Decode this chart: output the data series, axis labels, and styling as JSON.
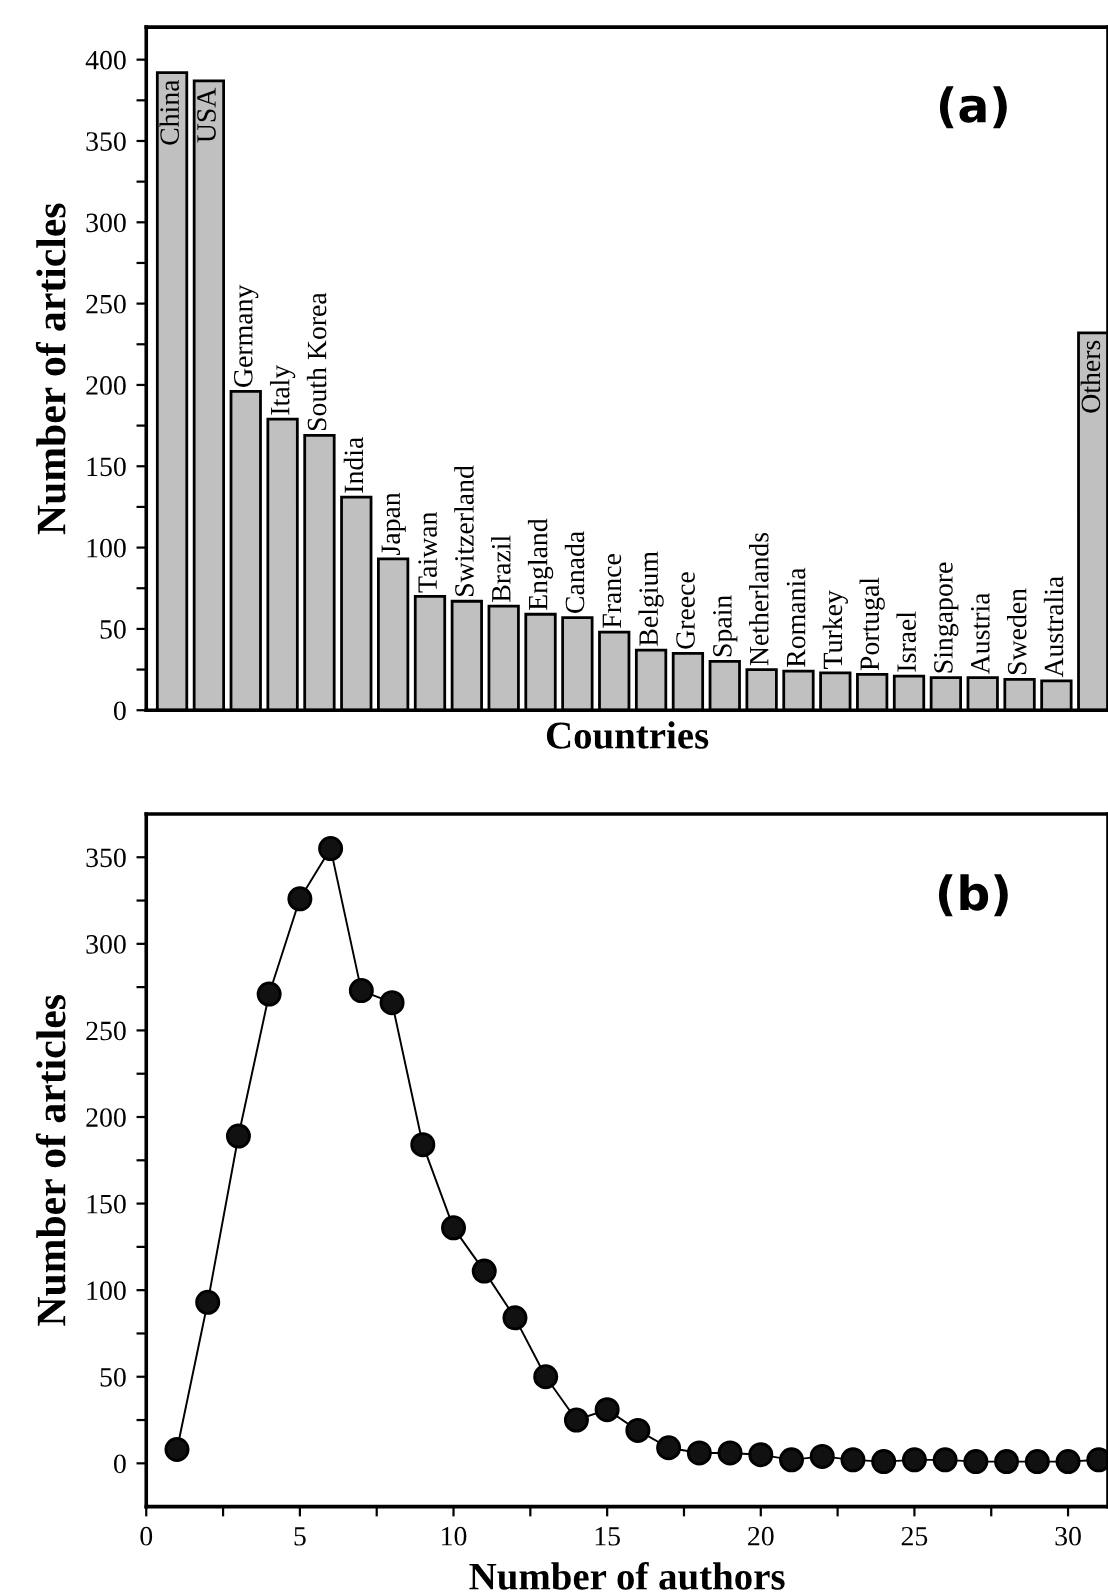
{
  "chart_data": [
    {
      "type": "bar",
      "xlabel": "Countries",
      "ylabel": "Number of articles",
      "annotations": [
        "(a)"
      ],
      "categories": [
        "China",
        "USA",
        "Germany",
        "Italy",
        "South Korea",
        "India",
        "Japan",
        "Taiwan",
        "Switzerland",
        "Brazil",
        "England",
        "Canada",
        "France",
        "Belgium",
        "Greece",
        "Spain",
        "Netherlands",
        "Romania",
        "Turkey",
        "Portugal",
        "Israel",
        "Singapore",
        "Austria",
        "Sweden",
        "Australia",
        "Others"
      ],
      "values": [
        392,
        387,
        196,
        179,
        169,
        131,
        93,
        70,
        67,
        64,
        59,
        57,
        48,
        37,
        35,
        30,
        25,
        24,
        23,
        22,
        21,
        20,
        20,
        19,
        18,
        232
      ],
      "color": "#c0c0c0",
      "ylim": [
        0,
        420
      ],
      "yticks": [
        0,
        {
          "value": 25,
          "label": null
        },
        50,
        {
          "value": 75,
          "label": null
        },
        100,
        {
          "value": 125,
          "label": null
        },
        150,
        {
          "value": 175,
          "label": null
        },
        200,
        {
          "value": 225,
          "label": null
        },
        250,
        {
          "value": 275,
          "label": null
        },
        300,
        {
          "value": 325,
          "label": null
        },
        350,
        {
          "value": 375,
          "label": null
        },
        400
      ],
      "grid": false,
      "legend": false
    },
    {
      "type": "line",
      "xlabel": "Number of authors",
      "ylabel": "Number of articles",
      "annotations": [
        "(b)"
      ],
      "x": [
        1,
        2,
        3,
        4,
        5,
        6,
        7,
        8,
        9,
        10,
        11,
        12,
        13,
        14,
        15,
        16,
        17,
        18,
        19,
        20,
        21,
        22,
        23,
        24,
        25,
        26,
        27,
        28,
        29,
        30,
        31
      ],
      "values": [
        8,
        93,
        189,
        271,
        326,
        355,
        273,
        266,
        184,
        136,
        111,
        84,
        50,
        25,
        31,
        19,
        9,
        6,
        6,
        5,
        2,
        4,
        2,
        1,
        2,
        2,
        1,
        1,
        1,
        1,
        2
      ],
      "color": "#000000",
      "marker": "circle",
      "line_style": "solid",
      "xlim": [
        0,
        31.3
      ],
      "xticks": [
        0,
        {
          "value": 2.5,
          "label": null
        },
        5,
        {
          "value": 7.5,
          "label": null
        },
        10,
        {
          "value": 12.5,
          "label": null
        },
        15,
        {
          "value": 17.5,
          "label": null
        },
        20,
        {
          "value": 22.5,
          "label": null
        },
        25,
        {
          "value": 27.5,
          "label": null
        },
        30
      ],
      "ylim": [
        -25,
        375
      ],
      "yticks": [
        0,
        {
          "value": 25,
          "label": null
        },
        50,
        {
          "value": 75,
          "label": null
        },
        100,
        {
          "value": 125,
          "label": null
        },
        150,
        {
          "value": 175,
          "label": null
        },
        200,
        {
          "value": 225,
          "label": null
        },
        250,
        {
          "value": 275,
          "label": null
        },
        300,
        {
          "value": 325,
          "label": null
        },
        350
      ],
      "grid": false,
      "legend": false
    }
  ]
}
